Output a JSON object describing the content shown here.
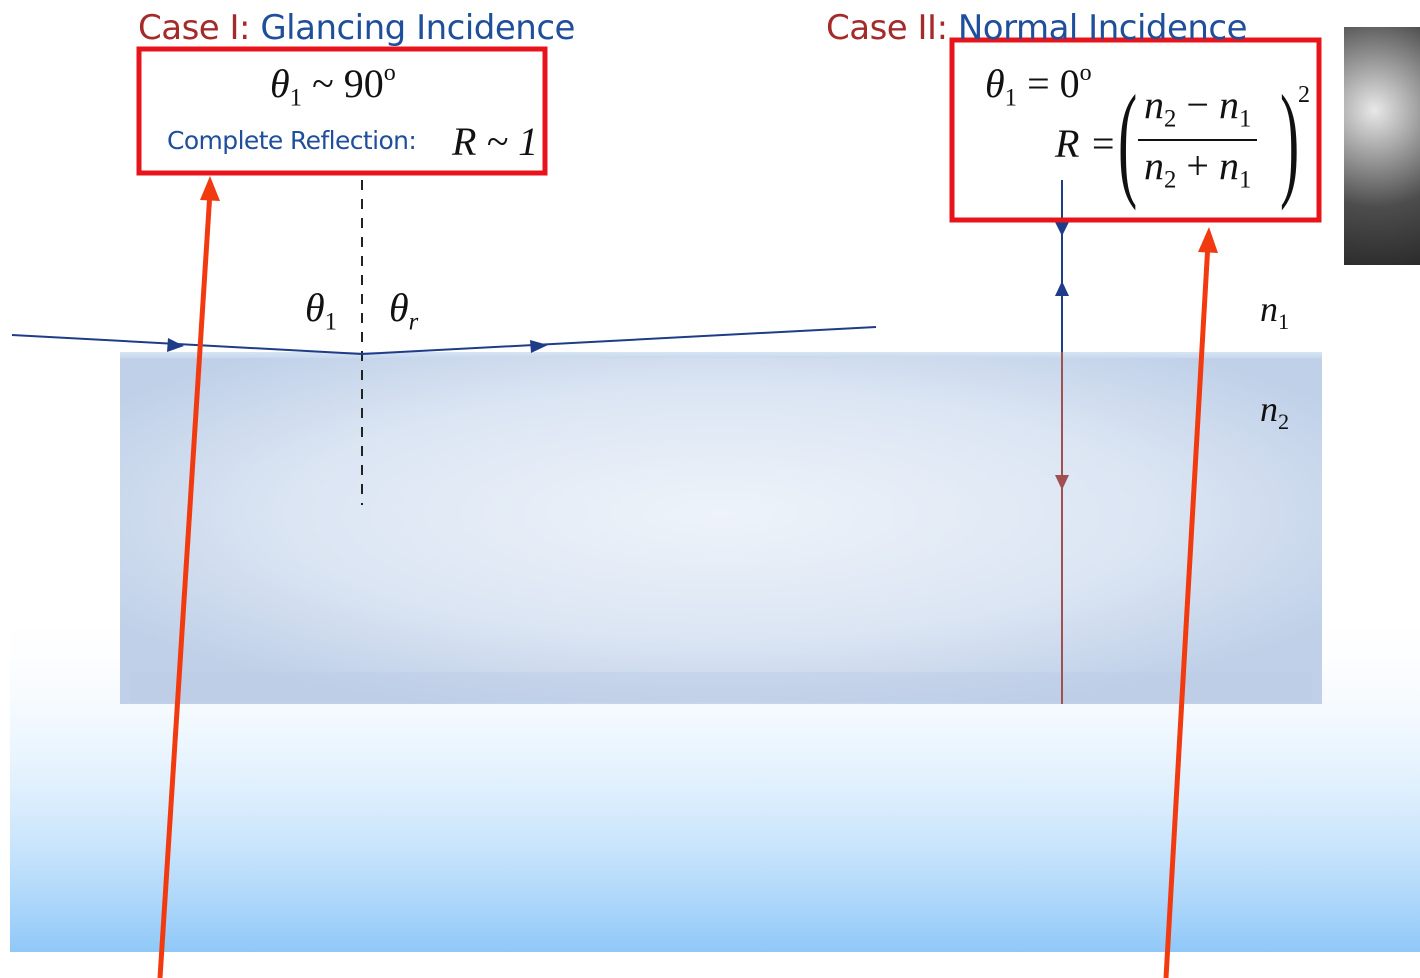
{
  "case1": {
    "prefix": "Case I:",
    "name": "Glancing Incidence",
    "condition_var": "θ",
    "condition_sub": "1",
    "condition_rel": "~ 90",
    "condition_sup": "o",
    "note": "Complete Reflection:",
    "result": "R ~ 1"
  },
  "case2": {
    "prefix": "Case II:",
    "name": "Normal Incidence",
    "condition_var": "θ",
    "condition_sub": "1",
    "condition_rel": "= 0",
    "condition_sup": "o",
    "r_lhs": "R =",
    "num_a": "n",
    "num_a_sub": "2",
    "num_op": " − ",
    "num_b": "n",
    "num_b_sub": "1",
    "den_a": "n",
    "den_a_sub": "2",
    "den_op": " + ",
    "den_b": "n",
    "den_b_sub": "1",
    "exponent": "2"
  },
  "labels": {
    "theta_1_var": "θ",
    "theta_1_sub": "1",
    "theta_r_var": "θ",
    "theta_r_sub": "r",
    "n1_var": "n",
    "n1_sub": "1",
    "n2_var": "n",
    "n2_sub": "2"
  },
  "colors": {
    "title_prefix": "#a52a2a",
    "title_name": "#1f4e9a",
    "ray": "#1f3c88",
    "transmitted_ray": "#a05050",
    "highlight_box": "#e8141b",
    "arrow": "#f23a10",
    "medium": "#b8cce8",
    "background_gradient_bottom": "#8fc8f8"
  },
  "icons": {
    "photo": "diamond-photo"
  }
}
